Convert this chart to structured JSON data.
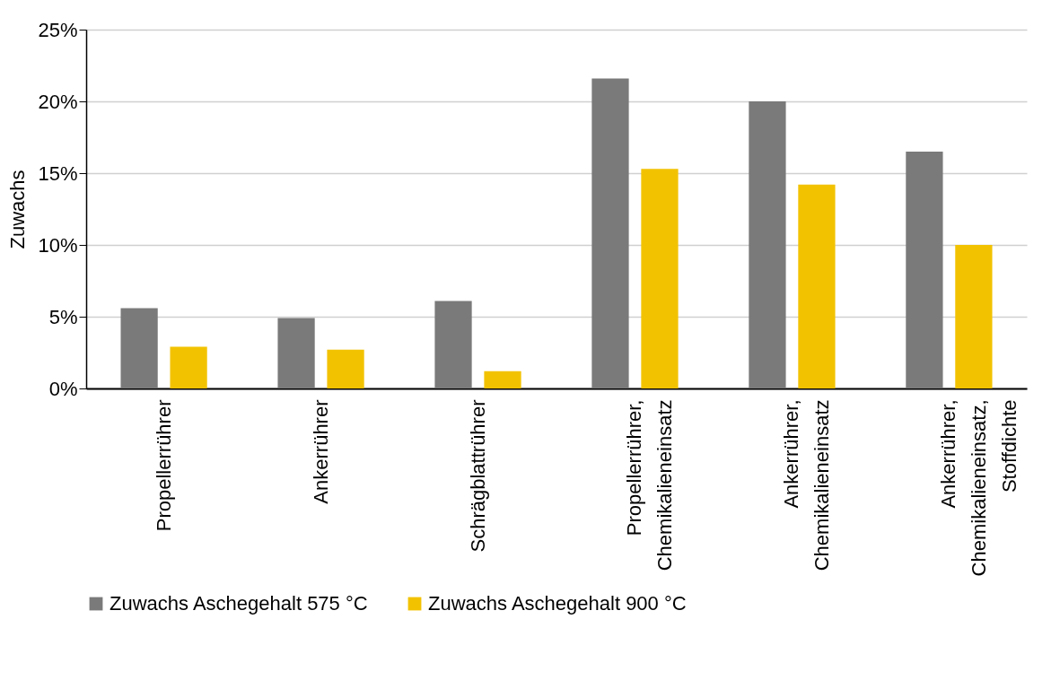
{
  "chart_data": {
    "type": "bar",
    "ylabel": "Zuwachs",
    "categories": [
      "Propellerrührer",
      "Ankerrührer",
      "Schrägblattrührer",
      "Propellerrührer, Chemikalieneinsatz",
      "Ankerrührer, Chemikalieneinsatz",
      "Ankerrührer, Chemikalieneinsatz, Stoffdichte"
    ],
    "series": [
      {
        "name": "Zuwachs Aschegehalt 575 °C",
        "color": "#7a7a7a",
        "values": [
          5.6,
          4.9,
          6.1,
          21.6,
          20.0,
          16.5
        ]
      },
      {
        "name": "Zuwachs Aschegehalt 900 °C",
        "color": "#f2c200",
        "values": [
          2.9,
          2.7,
          1.2,
          15.3,
          14.2,
          10.0
        ]
      }
    ],
    "ylim": [
      0,
      25
    ],
    "yticks": [
      {
        "value": 0,
        "label": "0%"
      },
      {
        "value": 5,
        "label": "5%"
      },
      {
        "value": 10,
        "label": "10%"
      },
      {
        "value": 15,
        "label": "15%"
      },
      {
        "value": 20,
        "label": "20%"
      },
      {
        "value": 25,
        "label": "25%"
      }
    ],
    "grid": true,
    "legend": "bottom"
  }
}
